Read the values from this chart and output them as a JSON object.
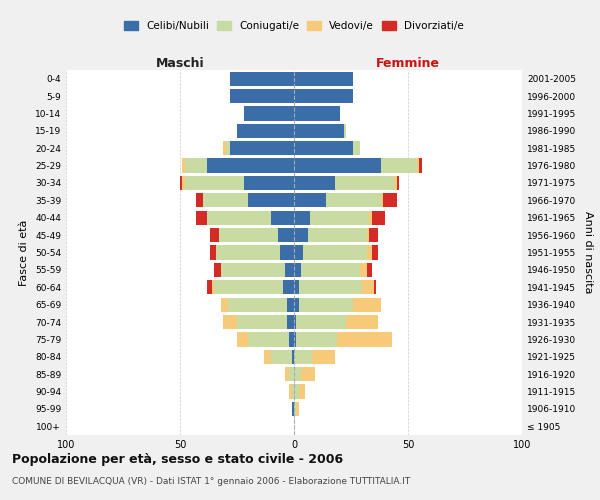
{
  "age_groups": [
    "100+",
    "95-99",
    "90-94",
    "85-89",
    "80-84",
    "75-79",
    "70-74",
    "65-69",
    "60-64",
    "55-59",
    "50-54",
    "45-49",
    "40-44",
    "35-39",
    "30-34",
    "25-29",
    "20-24",
    "15-19",
    "10-14",
    "5-9",
    "0-4"
  ],
  "birth_years": [
    "≤ 1905",
    "1906-1910",
    "1911-1915",
    "1916-1920",
    "1921-1925",
    "1926-1930",
    "1931-1935",
    "1936-1940",
    "1941-1945",
    "1946-1950",
    "1951-1955",
    "1956-1960",
    "1961-1965",
    "1966-1970",
    "1971-1975",
    "1976-1980",
    "1981-1985",
    "1986-1990",
    "1991-1995",
    "1996-2000",
    "2001-2005"
  ],
  "males": {
    "celibi": [
      0,
      1,
      0,
      0,
      1,
      2,
      3,
      3,
      5,
      4,
      6,
      7,
      10,
      20,
      22,
      38,
      28,
      25,
      22,
      28,
      28
    ],
    "coniugati": [
      0,
      0,
      1,
      2,
      9,
      18,
      22,
      26,
      30,
      28,
      28,
      26,
      28,
      20,
      26,
      10,
      2,
      0,
      0,
      0,
      0
    ],
    "vedovi": [
      0,
      0,
      1,
      2,
      3,
      5,
      6,
      3,
      1,
      0,
      0,
      0,
      0,
      0,
      1,
      1,
      1,
      0,
      0,
      0,
      0
    ],
    "divorziati": [
      0,
      0,
      0,
      0,
      0,
      0,
      0,
      0,
      2,
      3,
      3,
      4,
      5,
      3,
      1,
      0,
      0,
      0,
      0,
      0,
      0
    ]
  },
  "females": {
    "nubili": [
      0,
      0,
      0,
      0,
      0,
      1,
      1,
      2,
      2,
      3,
      4,
      6,
      7,
      14,
      18,
      38,
      26,
      22,
      20,
      26,
      26
    ],
    "coniugate": [
      0,
      1,
      2,
      3,
      8,
      18,
      22,
      24,
      28,
      26,
      28,
      26,
      26,
      24,
      26,
      16,
      3,
      1,
      0,
      0,
      0
    ],
    "vedove": [
      0,
      1,
      3,
      6,
      10,
      24,
      14,
      12,
      5,
      3,
      2,
      1,
      1,
      1,
      1,
      1,
      0,
      0,
      0,
      0,
      0
    ],
    "divorziate": [
      0,
      0,
      0,
      0,
      0,
      0,
      0,
      0,
      1,
      2,
      3,
      4,
      6,
      6,
      1,
      1,
      0,
      0,
      0,
      0,
      0
    ]
  },
  "colors": {
    "celibi": "#3b6da8",
    "coniugati": "#c8dba3",
    "vedovi": "#f7ca7a",
    "divorziati": "#d42b27"
  },
  "xlim": 100,
  "title": "Popolazione per età, sesso e stato civile - 2006",
  "subtitle": "COMUNE DI BEVILACQUA (VR) - Dati ISTAT 1° gennaio 2006 - Elaborazione TUTTITALIA.IT",
  "ylabel": "Fasce di età",
  "ylabel_right": "Anni di nascita",
  "xlabel_left": "Maschi",
  "xlabel_right": "Femmine",
  "bg_color": "#f0f0f0",
  "plot_bg": "#ffffff"
}
